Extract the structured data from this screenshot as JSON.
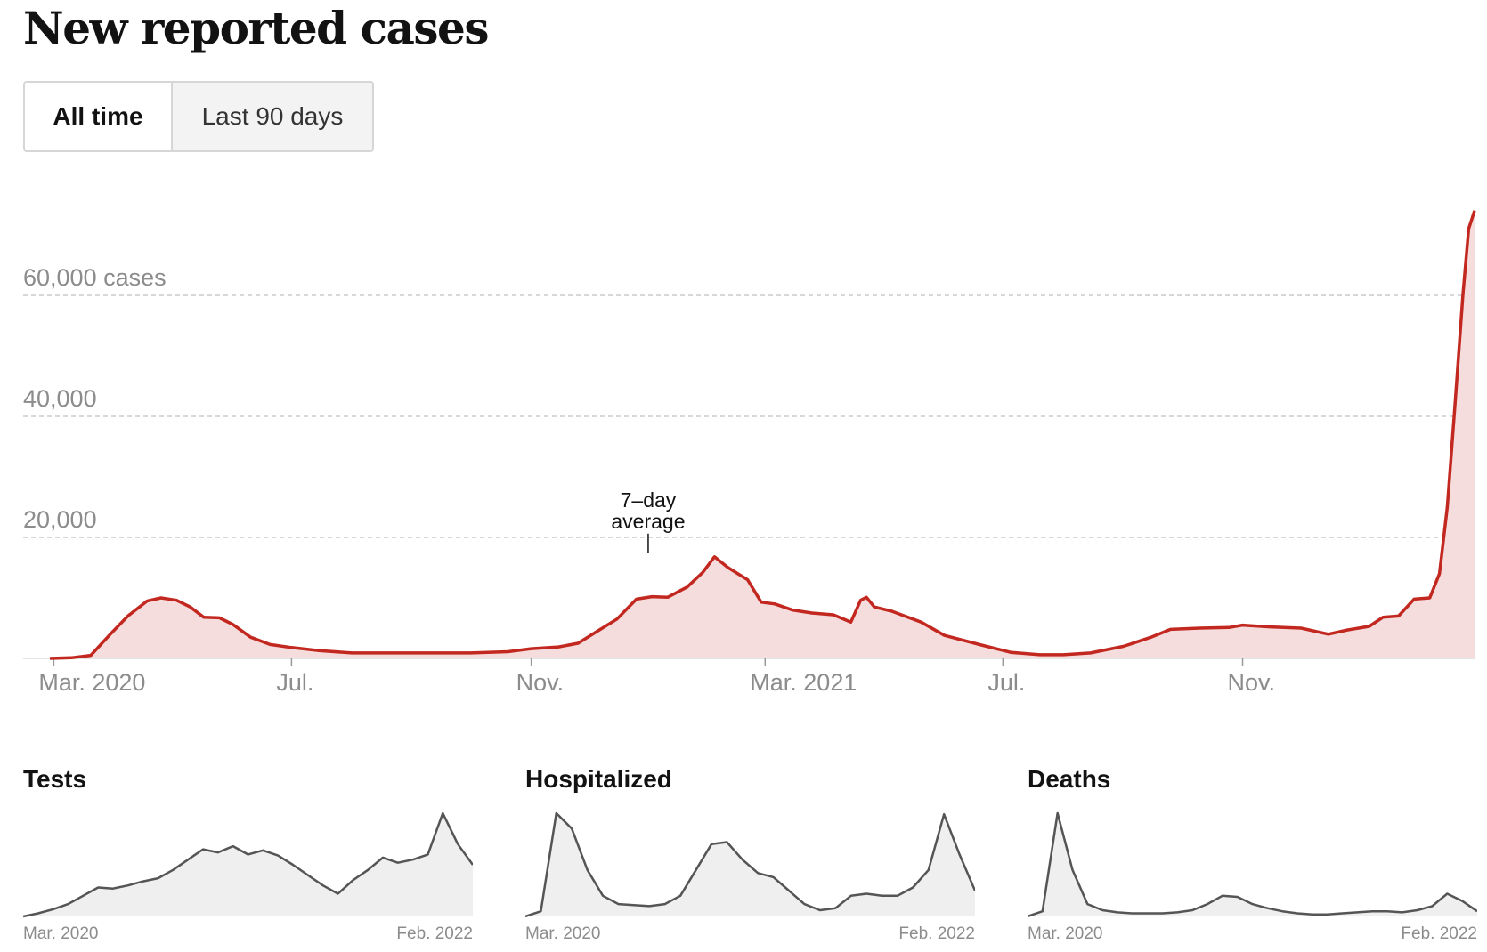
{
  "title": "New reported cases",
  "toggle": {
    "all_time_label": "All time",
    "last_90_label": "Last 90 days",
    "selected": "All time"
  },
  "colors": {
    "cases_line": "#c2281f",
    "cases_fill": "#f6dddd",
    "small_line": "#555555",
    "small_fill": "#efefef",
    "grid": "#cccccc",
    "axis_text": "#8c8c8c"
  },
  "chart_data": [
    {
      "type": "area",
      "title": "New reported cases",
      "ylabel": "",
      "unit_suffix": "cases",
      "ylim": [
        0,
        75000
      ],
      "xlim": [
        "2020-02-28",
        "2022-02-28"
      ],
      "y_ticks": [
        {
          "value": 20000,
          "label": "20,000"
        },
        {
          "value": 40000,
          "label": "40,000"
        },
        {
          "value": 60000,
          "label": "60,000 cases"
        }
      ],
      "x_ticks": [
        {
          "date": "2020-03-01",
          "label": "Mar. 2020"
        },
        {
          "date": "2020-07-01",
          "label": "Jul."
        },
        {
          "date": "2020-11-01",
          "label": "Nov."
        },
        {
          "date": "2021-03-01",
          "label": "Mar. 2021"
        },
        {
          "date": "2021-07-01",
          "label": "Jul."
        },
        {
          "date": "2021-11-01",
          "label": "Nov."
        }
      ],
      "grid": true,
      "annotation": {
        "text_line1": "7–day",
        "text_line2": "average",
        "date": "2020-12-31",
        "value": 16800
      },
      "series": [
        {
          "name": "",
          "points": [
            [
              "2020-02-28",
              0
            ],
            [
              "2020-03-10",
              100
            ],
            [
              "2020-03-20",
              500
            ],
            [
              "2020-03-30",
              4000
            ],
            [
              "2020-04-08",
              7000
            ],
            [
              "2020-04-18",
              9500
            ],
            [
              "2020-04-25",
              10000
            ],
            [
              "2020-05-03",
              9600
            ],
            [
              "2020-05-10",
              8500
            ],
            [
              "2020-05-17",
              6800
            ],
            [
              "2020-05-25",
              6700
            ],
            [
              "2020-06-01",
              5600
            ],
            [
              "2020-06-10",
              3500
            ],
            [
              "2020-06-20",
              2300
            ],
            [
              "2020-07-01",
              1800
            ],
            [
              "2020-07-15",
              1300
            ],
            [
              "2020-08-01",
              900
            ],
            [
              "2020-09-01",
              900
            ],
            [
              "2020-10-01",
              900
            ],
            [
              "2020-10-20",
              1100
            ],
            [
              "2020-11-01",
              1600
            ],
            [
              "2020-11-15",
              1900
            ],
            [
              "2020-11-25",
              2500
            ],
            [
              "2020-12-05",
              4500
            ],
            [
              "2020-12-15",
              6500
            ],
            [
              "2020-12-25",
              9800
            ],
            [
              "2021-01-02",
              10200
            ],
            [
              "2021-01-10",
              10100
            ],
            [
              "2021-01-20",
              11800
            ],
            [
              "2021-01-28",
              14200
            ],
            [
              "2021-02-03",
              16800
            ],
            [
              "2021-02-10",
              15000
            ],
            [
              "2021-02-20",
              13000
            ],
            [
              "2021-02-27",
              9300
            ],
            [
              "2021-03-06",
              9000
            ],
            [
              "2021-03-15",
              8000
            ],
            [
              "2021-03-25",
              7500
            ],
            [
              "2021-04-05",
              7200
            ],
            [
              "2021-04-14",
              6000
            ],
            [
              "2021-04-19",
              9600
            ],
            [
              "2021-04-22",
              10100
            ],
            [
              "2021-04-26",
              8500
            ],
            [
              "2021-05-05",
              7800
            ],
            [
              "2021-05-20",
              6000
            ],
            [
              "2021-06-01",
              3800
            ],
            [
              "2021-06-20",
              2200
            ],
            [
              "2021-07-05",
              1000
            ],
            [
              "2021-07-20",
              600
            ],
            [
              "2021-08-01",
              600
            ],
            [
              "2021-08-15",
              900
            ],
            [
              "2021-09-01",
              2000
            ],
            [
              "2021-09-15",
              3500
            ],
            [
              "2021-09-25",
              4800
            ],
            [
              "2021-10-10",
              5000
            ],
            [
              "2021-10-25",
              5100
            ],
            [
              "2021-11-01",
              5500
            ],
            [
              "2021-11-15",
              5200
            ],
            [
              "2021-12-01",
              5000
            ],
            [
              "2021-12-15",
              4000
            ],
            [
              "2021-12-25",
              4700
            ],
            [
              "2022-01-05",
              5300
            ],
            [
              "2022-01-12",
              6800
            ],
            [
              "2022-01-20",
              7000
            ],
            [
              "2022-01-28",
              9800
            ],
            [
              "2022-02-05",
              10000
            ],
            [
              "2022-02-10",
              14000
            ],
            [
              "2022-02-14",
              25000
            ],
            [
              "2022-02-18",
              42000
            ],
            [
              "2022-02-22",
              60000
            ],
            [
              "2022-02-25",
              71000
            ],
            [
              "2022-02-28",
              74000
            ]
          ]
        }
      ]
    },
    {
      "type": "area",
      "title": "Tests",
      "x_start_label": "Mar. 2020",
      "x_end_label": "Feb. 2022",
      "y": [
        0.0,
        0.03,
        0.07,
        0.12,
        0.2,
        0.28,
        0.27,
        0.3,
        0.34,
        0.37,
        0.45,
        0.55,
        0.65,
        0.62,
        0.68,
        0.6,
        0.64,
        0.59,
        0.5,
        0.4,
        0.3,
        0.22,
        0.35,
        0.45,
        0.57,
        0.52,
        0.55,
        0.6,
        1.0,
        0.7,
        0.5
      ]
    },
    {
      "type": "area",
      "title": "Hospitalized",
      "x_start_label": "Mar. 2020",
      "x_end_label": "Feb. 2022",
      "y": [
        0.0,
        0.05,
        1.0,
        0.85,
        0.45,
        0.2,
        0.12,
        0.11,
        0.1,
        0.12,
        0.2,
        0.45,
        0.7,
        0.72,
        0.55,
        0.42,
        0.38,
        0.25,
        0.12,
        0.06,
        0.08,
        0.2,
        0.22,
        0.2,
        0.2,
        0.28,
        0.45,
        0.99,
        0.6,
        0.25
      ]
    },
    {
      "type": "area",
      "title": "Deaths",
      "x_start_label": "Mar. 2020",
      "x_end_label": "Feb. 2022",
      "y": [
        0.0,
        0.05,
        1.0,
        0.45,
        0.12,
        0.06,
        0.04,
        0.03,
        0.03,
        0.03,
        0.04,
        0.06,
        0.12,
        0.2,
        0.19,
        0.12,
        0.08,
        0.05,
        0.03,
        0.02,
        0.02,
        0.03,
        0.04,
        0.05,
        0.05,
        0.04,
        0.06,
        0.1,
        0.22,
        0.15,
        0.05
      ]
    }
  ]
}
